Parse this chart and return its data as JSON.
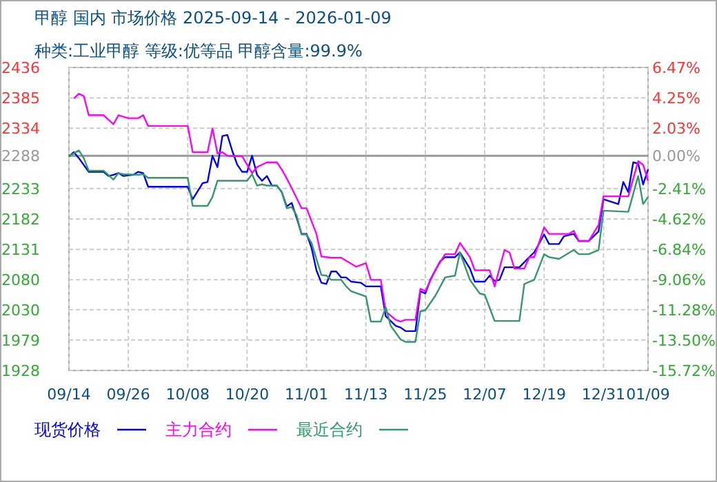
{
  "chart_data": {
    "type": "line",
    "title": "甲醇 国内 市场价格 2025-09-14 - 2026-01-09",
    "subtitle": "种类:工业甲醇 等级:优等品 甲醇含量:99.9%",
    "xlim": [
      "2025-09-14",
      "2026-01-09"
    ],
    "xticks": [
      {
        "value": "2025-09-14",
        "label": "09/14"
      },
      {
        "value": "2025-09-26",
        "label": "09/26"
      },
      {
        "value": "2025-10-08",
        "label": "10/08"
      },
      {
        "value": "2025-10-20",
        "label": "10/20"
      },
      {
        "value": "2025-11-01",
        "label": "11/01"
      },
      {
        "value": "2025-11-13",
        "label": "11/13"
      },
      {
        "value": "2025-11-25",
        "label": "11/25"
      },
      {
        "value": "2025-12-07",
        "label": "12/07"
      },
      {
        "value": "2025-12-19",
        "label": "12/19"
      },
      {
        "value": "2025-12-31",
        "label": "12/31"
      },
      {
        "value": "2026-01-09",
        "label": "01/09"
      }
    ],
    "ylim": [
      1928,
      2436
    ],
    "yticks": [
      1928,
      1979,
      2030,
      2080,
      2131,
      2182,
      2233,
      2288,
      2334,
      2385,
      2436
    ],
    "y2lim": [
      -15.72,
      6.47
    ],
    "y2ticks": [
      {
        "value": -15.72,
        "label": "-15.72%"
      },
      {
        "value": -13.5,
        "label": "-13.50%"
      },
      {
        "value": -11.28,
        "label": "-11.28%"
      },
      {
        "value": -9.06,
        "label": "-9.06%"
      },
      {
        "value": -6.84,
        "label": "-6.84%"
      },
      {
        "value": -4.62,
        "label": "-4.62%"
      },
      {
        "value": -2.41,
        "label": "-2.41%"
      },
      {
        "value": 0,
        "label": "0.00%"
      },
      {
        "value": 2.03,
        "label": "2.03%"
      },
      {
        "value": 4.25,
        "label": "4.25%"
      },
      {
        "value": 6.47,
        "label": "6.47%"
      }
    ],
    "ref_lines": [
      {
        "axis": "y",
        "value": 2288,
        "color": "#999999"
      }
    ],
    "grid": true,
    "legend": "bottom",
    "series": [
      {
        "name": "现货价格",
        "color": "#0000ff",
        "x": [
          "2025-09-14",
          "2025-09-15",
          "2025-09-16",
          "2025-09-18",
          "2025-09-21",
          "2025-09-22",
          "2025-09-23",
          "2025-09-24",
          "2025-09-25",
          "2025-09-27",
          "2025-09-28",
          "2025-09-29",
          "2025-09-30",
          "2025-10-08",
          "2025-10-09",
          "2025-10-11",
          "2025-10-12",
          "2025-10-13",
          "2025-10-14",
          "2025-10-15",
          "2025-10-16",
          "2025-10-17",
          "2025-10-18",
          "2025-10-19",
          "2025-10-20",
          "2025-10-21",
          "2025-10-22",
          "2025-10-23",
          "2025-10-24",
          "2025-10-25",
          "2025-10-26",
          "2025-10-27",
          "2025-10-28",
          "2025-10-29",
          "2025-10-30",
          "2025-10-31",
          "2025-11-01",
          "2025-11-02",
          "2025-11-03",
          "2025-11-04",
          "2025-11-05",
          "2025-11-06",
          "2025-11-07",
          "2025-11-08",
          "2025-11-09",
          "2025-11-10",
          "2025-11-12",
          "2025-11-13",
          "2025-11-16",
          "2025-11-17",
          "2025-11-19",
          "2025-11-20",
          "2025-11-21",
          "2025-11-23",
          "2025-11-24",
          "2025-11-25",
          "2025-11-26",
          "2025-11-28",
          "2025-11-29",
          "2025-12-01",
          "2025-12-02",
          "2025-12-04",
          "2025-12-05",
          "2025-12-07",
          "2025-12-08",
          "2025-12-09",
          "2025-12-10",
          "2025-12-11",
          "2025-12-14",
          "2025-12-16",
          "2025-12-17",
          "2025-12-19",
          "2025-12-20",
          "2025-12-22",
          "2025-12-23",
          "2025-12-25",
          "2025-12-26",
          "2025-12-28",
          "2025-12-30",
          "2025-12-31",
          "2026-01-03",
          "2026-01-04",
          "2026-01-05",
          "2026-01-06",
          "2026-01-07",
          "2026-01-08",
          "2026-01-09"
        ],
        "values": [
          2287,
          2294,
          2284,
          2261,
          2261,
          2254,
          2256,
          2259,
          2254,
          2256,
          2261,
          2259,
          2236,
          2236,
          2215,
          2242,
          2244,
          2288,
          2269,
          2321,
          2323,
          2296,
          2273,
          2261,
          2261,
          2288,
          2256,
          2246,
          2254,
          2238,
          2238,
          2227,
          2203,
          2209,
          2184,
          2157,
          2157,
          2134,
          2096,
          2075,
          2073,
          2094,
          2094,
          2084,
          2084,
          2077,
          2075,
          2069,
          2069,
          2019,
          2003,
          2000,
          1994,
          1994,
          2061,
          2057,
          2080,
          2111,
          2118,
          2118,
          2126,
          2099,
          2077,
          2077,
          2087,
          2078,
          2080,
          2101,
          2101,
          2118,
          2126,
          2156,
          2140,
          2140,
          2153,
          2157,
          2145,
          2145,
          2161,
          2215,
          2207,
          2244,
          2227,
          2277,
          2275,
          2240,
          2265
        ]
      },
      {
        "name": "主力合约",
        "color": "#ff00ff",
        "x": [
          "2025-09-15",
          "2025-09-16",
          "2025-09-17",
          "2025-09-18",
          "2025-09-21",
          "2025-09-23",
          "2025-09-24",
          "2025-09-26",
          "2025-09-28",
          "2025-09-29",
          "2025-09-30",
          "2025-10-08",
          "2025-10-09",
          "2025-10-12",
          "2025-10-13",
          "2025-10-14",
          "2025-10-15",
          "2025-10-16",
          "2025-10-19",
          "2025-10-20",
          "2025-10-21",
          "2025-10-22",
          "2025-10-24",
          "2025-10-26",
          "2025-10-27",
          "2025-10-28",
          "2025-10-29",
          "2025-10-31",
          "2025-11-01",
          "2025-11-03",
          "2025-11-04",
          "2025-11-06",
          "2025-11-08",
          "2025-11-11",
          "2025-11-13",
          "2025-11-14",
          "2025-11-16",
          "2025-11-17",
          "2025-11-19",
          "2025-11-20",
          "2025-11-21",
          "2025-11-23",
          "2025-11-24",
          "2025-11-25",
          "2025-11-27",
          "2025-11-29",
          "2025-12-01",
          "2025-12-02",
          "2025-12-04",
          "2025-12-05",
          "2025-12-08",
          "2025-12-09",
          "2025-12-11",
          "2025-12-12",
          "2025-12-13",
          "2025-12-15",
          "2025-12-16",
          "2025-12-17",
          "2025-12-19",
          "2025-12-20",
          "2025-12-24",
          "2025-12-25",
          "2025-12-26",
          "2025-12-28",
          "2025-12-30",
          "2025-12-31",
          "2026-01-05",
          "2026-01-07",
          "2026-01-08",
          "2026-01-09"
        ],
        "values": [
          2384,
          2392,
          2388,
          2356,
          2356,
          2341,
          2356,
          2351,
          2351,
          2356,
          2338,
          2338,
          2294,
          2294,
          2334,
          2292,
          2294,
          2288,
          2287,
          2273,
          2259,
          2269,
          2277,
          2277,
          2265,
          2250,
          2234,
          2200,
          2200,
          2157,
          2119,
          2117,
          2117,
          2102,
          2108,
          2080,
          2080,
          2027,
          2013,
          2010,
          2013,
          2013,
          2065,
          2061,
          2096,
          2123,
          2123,
          2142,
          2118,
          2096,
          2096,
          2069,
          2130,
          2126,
          2099,
          2099,
          2118,
          2118,
          2168,
          2157,
          2157,
          2162,
          2145,
          2145,
          2172,
          2220,
          2220,
          2279,
          2273,
          2246
        ]
      },
      {
        "name": "最近合约",
        "color": "#339966",
        "x": [
          "2025-09-14",
          "2025-09-16",
          "2025-09-17",
          "2025-09-18",
          "2025-09-21",
          "2025-09-23",
          "2025-09-24",
          "2025-09-25",
          "2025-09-28",
          "2025-09-29",
          "2025-09-30",
          "2025-10-08",
          "2025-10-09",
          "2025-10-12",
          "2025-10-13",
          "2025-10-14",
          "2025-10-20",
          "2025-10-21",
          "2025-10-22",
          "2025-10-23",
          "2025-10-24",
          "2025-10-26",
          "2025-10-27",
          "2025-10-28",
          "2025-10-29",
          "2025-10-30",
          "2025-10-31",
          "2025-11-01",
          "2025-11-02",
          "2025-11-04",
          "2025-11-05",
          "2025-11-06",
          "2025-11-08",
          "2025-11-09",
          "2025-11-10",
          "2025-11-13",
          "2025-11-14",
          "2025-11-16",
          "2025-11-17",
          "2025-11-18",
          "2025-11-20",
          "2025-11-21",
          "2025-11-23",
          "2025-11-24",
          "2025-11-25",
          "2025-11-27",
          "2025-11-29",
          "2025-12-01",
          "2025-12-02",
          "2025-12-04",
          "2025-12-06",
          "2025-12-07",
          "2025-12-09",
          "2025-12-14",
          "2025-12-15",
          "2025-12-17",
          "2025-12-19",
          "2025-12-20",
          "2025-12-22",
          "2025-12-25",
          "2025-12-26",
          "2025-12-28",
          "2025-12-30",
          "2025-12-31",
          "2026-01-05",
          "2026-01-07",
          "2026-01-08",
          "2026-01-09"
        ],
        "values": [
          2287,
          2297,
          2284,
          2263,
          2263,
          2248,
          2259,
          2257,
          2256,
          2257,
          2251,
          2251,
          2204,
          2204,
          2219,
          2246,
          2246,
          2257,
          2238,
          2240,
          2238,
          2238,
          2227,
          2200,
          2202,
          2188,
          2156,
          2156,
          2142,
          2088,
          2087,
          2080,
          2080,
          2069,
          2061,
          2052,
          2010,
          2010,
          2034,
          2003,
          1980,
          1976,
          1976,
          2027,
          2029,
          2053,
          2084,
          2087,
          2126,
          2080,
          2057,
          2055,
          2011,
          2011,
          2073,
          2080,
          2123,
          2118,
          2115,
          2130,
          2123,
          2123,
          2130,
          2196,
          2194,
          2254,
          2207,
          2219
        ]
      }
    ]
  }
}
